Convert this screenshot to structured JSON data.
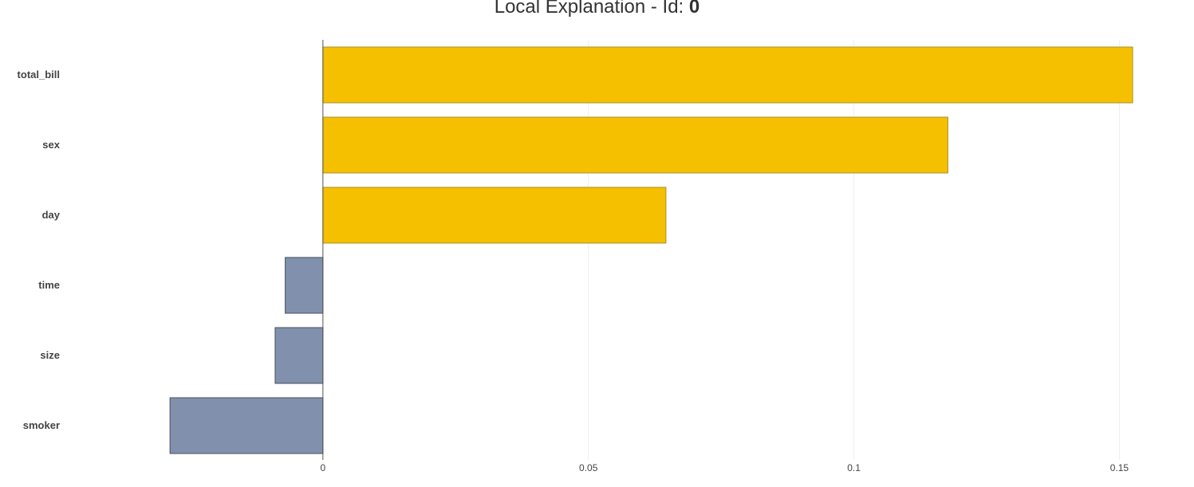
{
  "chart_data": {
    "type": "bar",
    "orientation": "horizontal",
    "title": "Local Explanation - Id: ",
    "title_id": "0",
    "categories": [
      "total_bill",
      "sex",
      "day",
      "time",
      "size",
      "smoker"
    ],
    "values": [
      0.1525,
      0.1177,
      0.0646,
      -0.0071,
      -0.009,
      -0.0288
    ],
    "xlim": [
      -0.04955,
      0.1618
    ],
    "xticks": [
      0,
      0.05,
      0.1,
      0.15
    ],
    "xtick_labels": [
      "0",
      "0.05",
      "0.1",
      "0.15"
    ],
    "xlabel": "",
    "ylabel": "",
    "grid": "vertical",
    "legend": "none",
    "colors": {
      "positive": "#f4c000",
      "positive_edge": "#a8922c",
      "negative": "#8090ad",
      "negative_edge": "#4a4f5c",
      "grid": "#eeeeee",
      "axis": "#555555",
      "text": "#444444"
    }
  }
}
